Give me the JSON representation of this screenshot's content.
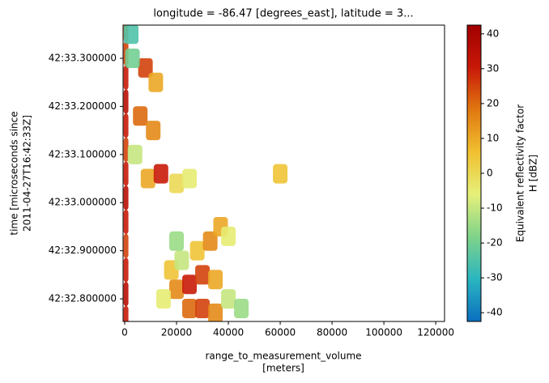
{
  "chart_data": {
    "type": "heatmap",
    "title": "longitude = -86.47 [degrees_east], latitude = 3...",
    "xlabel": [
      "range_to_measurement_volume",
      "[meters]"
    ],
    "ylabel": [
      "time [microseconds since",
      "2011-04-27T16:42:33Z]"
    ],
    "colorbar_label": [
      "Equivalent reflectivity factor",
      "H [dBZ]"
    ],
    "xlim": [
      -625,
      123400
    ],
    "xticks": [
      0,
      20000,
      40000,
      60000,
      80000,
      100000,
      120000
    ],
    "ylim": [
      32.753,
      33.369
    ],
    "yticks": [
      {
        "value": 32.8,
        "label": "42:32.800000"
      },
      {
        "value": 32.9,
        "label": "42:32.900000"
      },
      {
        "value": 33.0,
        "label": "42:33.000000"
      },
      {
        "value": 33.1,
        "label": "42:33.100000"
      },
      {
        "value": 33.2,
        "label": "42:33.200000"
      },
      {
        "value": 33.3,
        "label": "42:33.300000"
      }
    ],
    "clim": [
      -42.5,
      42.5
    ],
    "cticks": [
      -40,
      -30,
      -20,
      -10,
      0,
      10,
      20,
      30,
      40
    ],
    "colorscale": [
      "#0a6fc0",
      "#2bb5c0",
      "#7fd38a",
      "#e6f07a",
      "#f0c030",
      "#e07810",
      "#c81808",
      "#a00000"
    ],
    "x": [
      500,
      500,
      500,
      500,
      500,
      500,
      500,
      500,
      500,
      500,
      500,
      500,
      500,
      2500,
      25000,
      30000,
      35000,
      20000,
      25000,
      30000,
      35000,
      40000,
      18000,
      22000,
      28000,
      33000,
      37000,
      40000,
      15000,
      45000,
      20000,
      8000,
      12000,
      6000,
      11000,
      4000,
      9000,
      14000,
      20000,
      25000,
      60000,
      3000
    ],
    "y": [
      32.76,
      32.81,
      32.86,
      32.91,
      32.96,
      33.01,
      33.06,
      33.11,
      33.16,
      33.21,
      33.26,
      33.31,
      33.36,
      33.35,
      32.78,
      32.78,
      32.77,
      32.82,
      32.83,
      32.85,
      32.84,
      32.8,
      32.86,
      32.88,
      32.9,
      32.92,
      32.95,
      32.93,
      32.8,
      32.78,
      32.92,
      33.28,
      33.25,
      33.18,
      33.15,
      33.1,
      33.05,
      33.06,
      33.04,
      33.05,
      33.06,
      33.3
    ],
    "values": [
      30,
      35,
      30,
      25,
      30,
      35,
      30,
      25,
      30,
      35,
      30,
      25,
      20,
      -25,
      20,
      25,
      15,
      15,
      30,
      25,
      10,
      -10,
      5,
      -10,
      5,
      15,
      10,
      -5,
      -5,
      -15,
      -15,
      25,
      10,
      20,
      15,
      -10,
      10,
      30,
      0,
      -5,
      5,
      -20
    ]
  }
}
